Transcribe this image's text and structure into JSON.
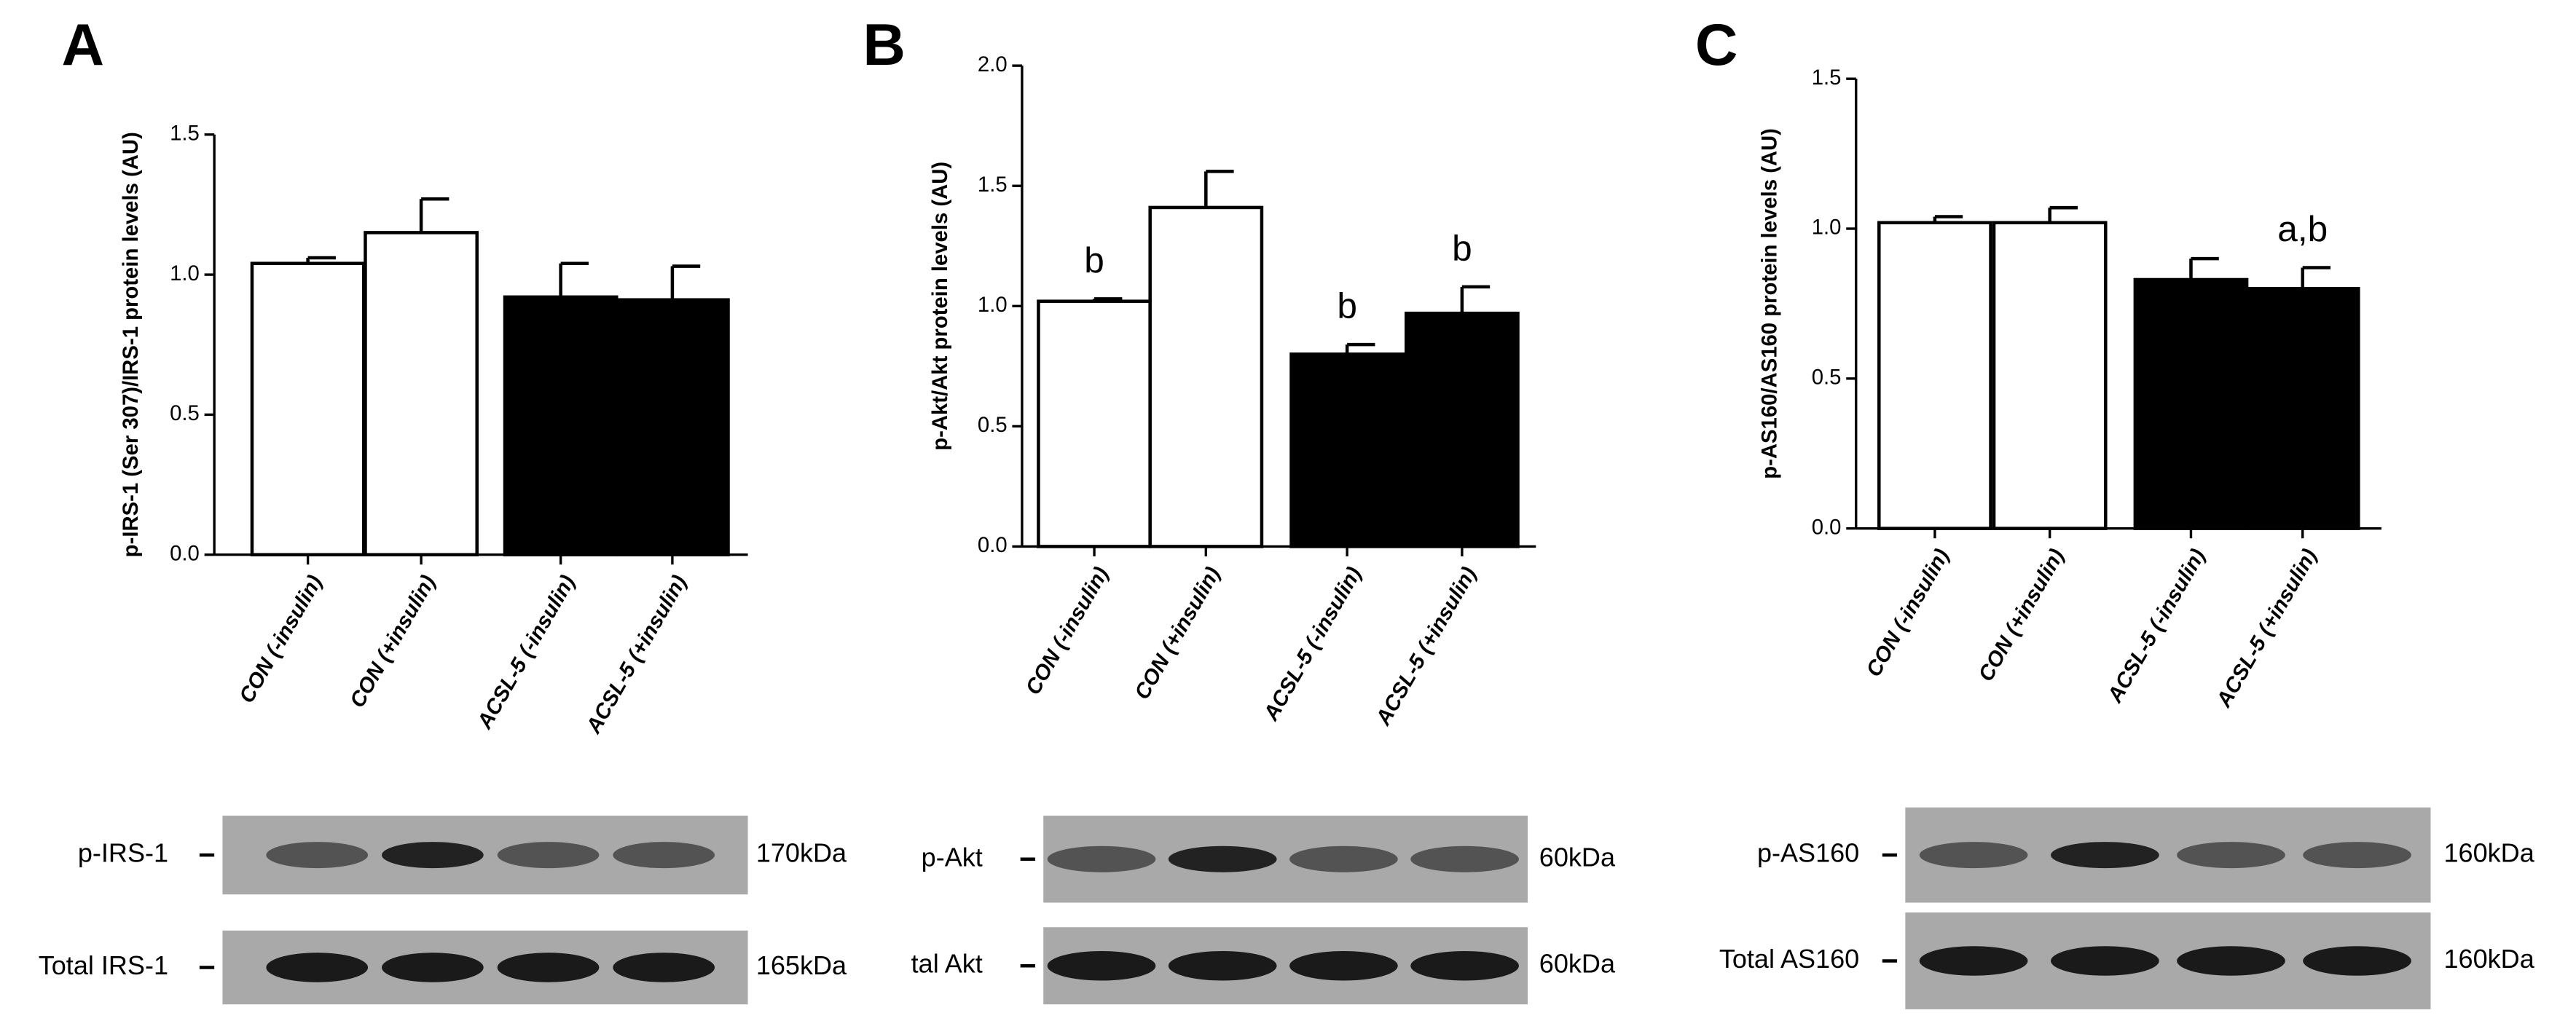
{
  "chart_data": [
    {
      "type": "bar",
      "panel": "A",
      "ylabel": "p-IRS-1 (Ser 307)/IRS-1 protein levels (AU)",
      "categories": [
        "CON (-insulin)",
        "CON (+insulin)",
        "ACSL-5 (-insulin)",
        "ACSL-5 (+insulin)"
      ],
      "values": [
        1.04,
        1.15,
        0.92,
        0.91
      ],
      "errors": [
        0.02,
        0.12,
        0.12,
        0.12
      ],
      "colors": [
        "#ffffff",
        "#ffffff",
        "#000000",
        "#000000"
      ],
      "bar_labels": [
        null,
        null,
        null,
        null
      ],
      "ylim": [
        0,
        1.5
      ],
      "yticks": [
        {
          "value": 0,
          "label": "0.0"
        },
        0.5,
        {
          "value": 1,
          "label": "1.0"
        },
        1.5
      ],
      "blots": [
        {
          "label": "p-IRS-1",
          "size": "170kDa"
        },
        {
          "label": "Total IRS-1",
          "size": "165kDa"
        }
      ]
    },
    {
      "type": "bar",
      "panel": "B",
      "ylabel": "p-Akt/Akt protein levels (AU)",
      "categories": [
        "CON (-insulin)",
        "CON (+insulin)",
        "ACSL-5 (-insulin)",
        "ACSL-5 (+insulin)"
      ],
      "values": [
        1.02,
        1.41,
        0.8,
        0.97
      ],
      "errors": [
        0.01,
        0.15,
        0.04,
        0.11
      ],
      "colors": [
        "#ffffff",
        "#ffffff",
        "#000000",
        "#000000"
      ],
      "bar_labels": [
        "b",
        null,
        "b",
        "b"
      ],
      "ylim": [
        0,
        2
      ],
      "yticks": [
        {
          "value": 0,
          "label": "0.0"
        },
        0.5,
        {
          "value": 1,
          "label": "1.0"
        },
        1.5,
        {
          "value": 2,
          "label": "2.0"
        }
      ],
      "blots": [
        {
          "label": "p-Akt",
          "size": "60kDa"
        },
        {
          "label": "tal Akt",
          "size": "60kDa"
        }
      ]
    },
    {
      "type": "bar",
      "panel": "C",
      "ylabel": "p-AS160/AS160 protein levels (AU)",
      "categories": [
        "CON (-insulin)",
        "CON (+insulin)",
        "ACSL-5 (-insulin)",
        "ACSL-5 (+insulin)"
      ],
      "values": [
        1.02,
        1.02,
        0.83,
        0.8
      ],
      "errors": [
        0.02,
        0.05,
        0.07,
        0.07
      ],
      "colors": [
        "#ffffff",
        "#ffffff",
        "#000000",
        "#000000"
      ],
      "bar_labels": [
        null,
        null,
        null,
        "a,b"
      ],
      "ylim": [
        0,
        1.5
      ],
      "yticks": [
        {
          "value": 0,
          "label": "0.0"
        },
        0.5,
        {
          "value": 1,
          "label": "1.0"
        },
        1.5
      ],
      "blots": [
        {
          "label": "p-AS160",
          "size": "160kDa"
        },
        {
          "label": "Total AS160",
          "size": "160kDa"
        }
      ]
    }
  ]
}
